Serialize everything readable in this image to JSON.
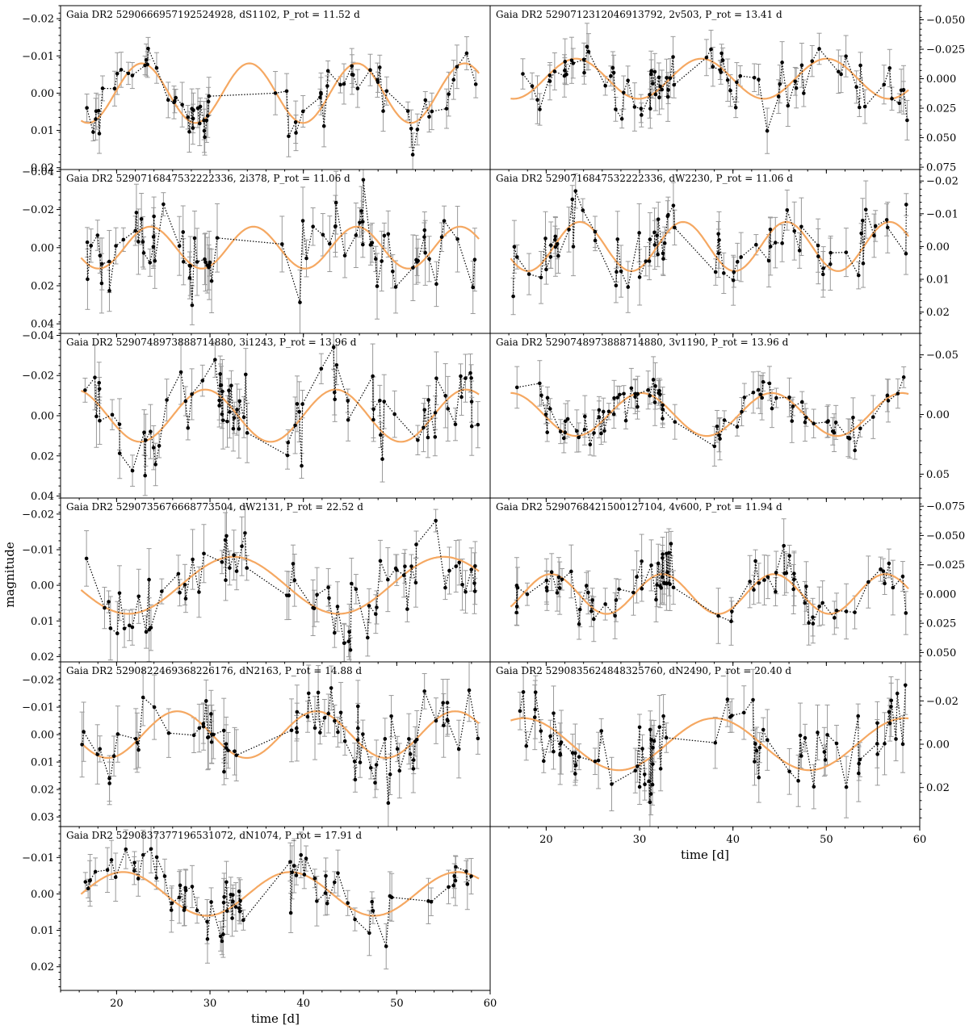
{
  "figure": {
    "ylabel": "magnitude",
    "xlabel": "time [d]"
  },
  "colors": {
    "fit": "#f5a862",
    "points": "#000000",
    "errorbars": "#999999",
    "frame": "#000000"
  },
  "chart_data": [
    {
      "type": "line",
      "title": "Gaia DR2 5290666957192524928, dS1102, P_rot = 11.52 d",
      "period": 11.52,
      "amplitude": 0.008,
      "fit_max_day": 22.7,
      "xlim": [
        14,
        60
      ],
      "ylim": [
        0.0205,
        -0.0235
      ],
      "yticks": [
        0.02,
        0.01,
        0.0,
        -0.01,
        -0.02
      ],
      "ytick_labels": [
        "0.02",
        "0.01",
        "0.00",
        "−0.01",
        "−0.02"
      ],
      "yaxis_side": "left",
      "xticks": [
        20,
        30,
        40,
        50,
        60
      ],
      "xtick_labels": [],
      "gaps": [
        [
          30,
          37
        ]
      ],
      "noise": 0.0035,
      "err": 0.004,
      "n": 75,
      "seed": 11
    },
    {
      "type": "line",
      "title": "Gaia DR2 5290712312046913792, 2v503, P_rot = 13.41 d",
      "period": 13.41,
      "amplitude": 0.017,
      "fit_max_day": 23.2,
      "xlim": [
        14,
        60
      ],
      "ylim": [
        0.077,
        -0.062
      ],
      "yticks": [
        0.075,
        0.05,
        0.025,
        0.0,
        -0.025,
        -0.05
      ],
      "ytick_labels": [
        "0.075",
        "0.050",
        "0.025",
        "0.000",
        "−0.025",
        "−0.050"
      ],
      "yaxis_side": "right",
      "xticks": [
        20,
        30,
        40,
        50,
        60
      ],
      "xtick_labels": [],
      "gaps": [
        [
          34,
          37
        ]
      ],
      "noise": 0.012,
      "err": 0.014,
      "n": 85,
      "seed": 22
    },
    {
      "type": "line",
      "title": "Gaia DR2 5290716847532222336, 2i378, P_rot = 11.06 d",
      "period": 11.06,
      "amplitude": 0.011,
      "fit_max_day": 23.6,
      "xlim": [
        14,
        60
      ],
      "ylim": [
        0.045,
        -0.041
      ],
      "yticks": [
        0.04,
        0.02,
        0.0,
        -0.02,
        -0.04
      ],
      "ytick_labels": [
        "0.04",
        "0.02",
        "0.00",
        "−0.02",
        "−0.04"
      ],
      "yaxis_side": "left",
      "xticks": [
        20,
        30,
        40,
        50,
        60
      ],
      "xtick_labels": [],
      "gaps": [
        [
          31,
          37
        ]
      ],
      "noise": 0.01,
      "err": 0.012,
      "n": 80,
      "seed": 33
    },
    {
      "type": "line",
      "title": "Gaia DR2 5290716847532222336, dW2230, P_rot = 11.06 d",
      "period": 11.06,
      "amplitude": 0.0075,
      "fit_max_day": 23.6,
      "xlim": [
        14,
        60
      ],
      "ylim": [
        0.0265,
        -0.0235
      ],
      "yticks": [
        0.02,
        0.01,
        0.0,
        -0.01,
        -0.02
      ],
      "ytick_labels": [
        "0.02",
        "0.01",
        "0.00",
        "−0.01",
        "−0.02"
      ],
      "yaxis_side": "right",
      "xticks": [
        20,
        30,
        40,
        50,
        60
      ],
      "xtick_labels": [],
      "gaps": [
        [
          34,
          38
        ]
      ],
      "noise": 0.005,
      "err": 0.006,
      "n": 80,
      "seed": 44
    },
    {
      "type": "line",
      "title": "Gaia DR2 5290748973888714880, 3i1243, P_rot = 13.96 d",
      "period": 13.96,
      "amplitude": 0.013,
      "fit_max_day": 29.5,
      "xlim": [
        14,
        60
      ],
      "ylim": [
        0.041,
        -0.041
      ],
      "yticks": [
        0.04,
        0.02,
        0.0,
        -0.02,
        -0.04
      ],
      "ytick_labels": [
        "0.04",
        "0.02",
        "0.00",
        "−0.02",
        "−0.04"
      ],
      "yaxis_side": "left",
      "xticks": [
        20,
        30,
        40,
        50,
        60
      ],
      "xtick_labels": [],
      "gaps": [
        [
          34,
          38
        ]
      ],
      "noise": 0.009,
      "err": 0.011,
      "n": 85,
      "seed": 55
    },
    {
      "type": "line",
      "title": "Gaia DR2 5290748973888714880, 3v1190, P_rot = 13.96 d",
      "period": 13.96,
      "amplitude": 0.018,
      "fit_max_day": 30.2,
      "xlim": [
        14,
        60
      ],
      "ylim": [
        0.07,
        -0.068
      ],
      "yticks": [
        0.05,
        0.0,
        -0.05
      ],
      "ytick_labels": [
        "0.05",
        "0.00",
        "−0.05"
      ],
      "yaxis_side": "right",
      "xticks": [
        20,
        30,
        40,
        50,
        60
      ],
      "xtick_labels": [],
      "gaps": [
        [
          34,
          38
        ]
      ],
      "noise": 0.01,
      "err": 0.013,
      "n": 85,
      "seed": 66
    },
    {
      "type": "line",
      "title": "Gaia DR2 5290735676668773504, dW2131, P_rot = 22.52 d",
      "period": 22.52,
      "amplitude": 0.008,
      "fit_max_day": 32.5,
      "xlim": [
        14,
        60
      ],
      "ylim": [
        0.0215,
        -0.0245
      ],
      "yticks": [
        0.02,
        0.01,
        0.0,
        -0.01,
        -0.02
      ],
      "ytick_labels": [
        "0.02",
        "0.01",
        "0.00",
        "−0.01",
        "−0.02"
      ],
      "yaxis_side": "left",
      "xticks": [
        20,
        30,
        40,
        50,
        60
      ],
      "xtick_labels": [],
      "gaps": [
        [
          34,
          38
        ]
      ],
      "noise": 0.005,
      "err": 0.006,
      "n": 75,
      "seed": 77
    },
    {
      "type": "line",
      "title": "Gaia DR2 5290768421500127104, 4v600, P_rot = 11.94 d",
      "period": 11.94,
      "amplitude": 0.017,
      "fit_max_day": 20.5,
      "xlim": [
        14,
        60
      ],
      "ylim": [
        0.058,
        -0.082
      ],
      "yticks": [
        0.05,
        0.025,
        0.0,
        -0.025,
        -0.05,
        -0.075
      ],
      "ytick_labels": [
        "0.050",
        "0.025",
        "0.000",
        "−0.025",
        "−0.050",
        "−0.075"
      ],
      "yaxis_side": "right",
      "xticks": [
        20,
        30,
        40,
        50,
        60
      ],
      "xtick_labels": [],
      "gaps": [
        [
          34,
          38
        ]
      ],
      "noise": 0.012,
      "err": 0.016,
      "n": 85,
      "seed": 88
    },
    {
      "type": "line",
      "title": "Gaia DR2 5290822469368226176, dN2163, P_rot = 14.88 d",
      "period": 14.88,
      "amplitude": 0.0085,
      "fit_max_day": 26.5,
      "xlim": [
        14,
        60
      ],
      "ylim": [
        0.0335,
        -0.0265
      ],
      "yticks": [
        0.03,
        0.02,
        0.01,
        0.0,
        -0.01,
        -0.02
      ],
      "ytick_labels": [
        "0.03",
        "0.02",
        "0.01",
        "0.00",
        "−0.01",
        "−0.02"
      ],
      "yaxis_side": "left",
      "xticks": [
        20,
        30,
        40,
        50,
        60
      ],
      "xtick_labels": [],
      "gaps": [
        [
          34,
          38
        ]
      ],
      "noise": 0.007,
      "err": 0.008,
      "n": 80,
      "seed": 99
    },
    {
      "type": "line",
      "title": "Gaia DR2 5290835624848325760, dN2490, P_rot = 20.40 d",
      "period": 20.4,
      "amplitude": 0.012,
      "fit_max_day": 38.0,
      "xlim": [
        14,
        60
      ],
      "ylim": [
        0.038,
        -0.038
      ],
      "yticks": [
        0.02,
        0.0,
        -0.02
      ],
      "ytick_labels": [
        "0.02",
        "0.00",
        "−0.02"
      ],
      "yaxis_side": "right",
      "xticks": [
        20,
        30,
        40,
        50,
        60
      ],
      "xtick_labels": [
        "20",
        "30",
        "40",
        "50",
        "60"
      ],
      "xlabel": "time [d]",
      "gaps": [
        [
          33,
          38
        ]
      ],
      "noise": 0.009,
      "err": 0.01,
      "n": 85,
      "seed": 111
    },
    {
      "type": "line",
      "title": "Gaia DR2 5290837377196531072, dN1074, P_rot = 17.91 d",
      "period": 17.91,
      "amplitude": 0.006,
      "fit_max_day": 20.7,
      "xlim": [
        14,
        60
      ],
      "ylim": [
        0.0265,
        -0.0185
      ],
      "yticks": [
        0.02,
        0.01,
        0.0,
        -0.01
      ],
      "ytick_labels": [
        "0.02",
        "0.01",
        "0.00",
        "−0.01"
      ],
      "yaxis_side": "left",
      "xticks": [
        20,
        30,
        40,
        50,
        60
      ],
      "xtick_labels": [
        "20",
        "30",
        "40",
        "50",
        "60"
      ],
      "xlabel": "time [d]",
      "gaps": [
        [
          34,
          38
        ]
      ],
      "noise": 0.004,
      "err": 0.005,
      "n": 80,
      "seed": 122
    }
  ]
}
